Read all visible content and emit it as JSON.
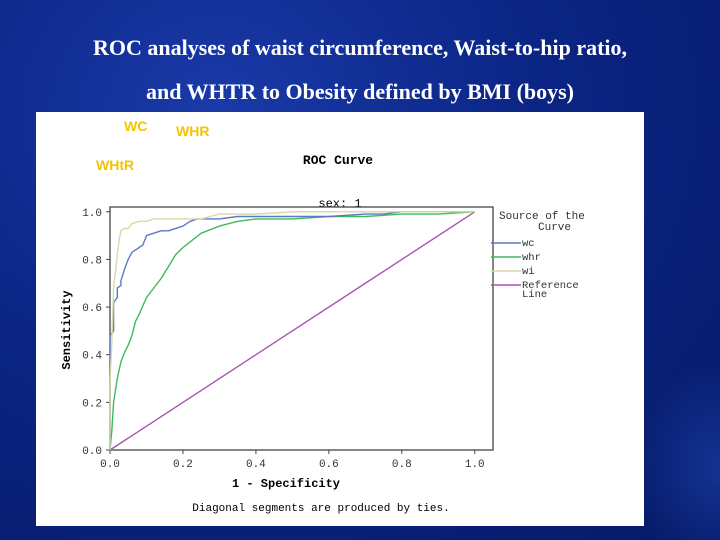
{
  "slide": {
    "title_line1": "ROC analyses of waist circumference, Waist-to-hip ratio,",
    "title_line2": "and WHTR to Obesity defined by BMI  (boys)"
  },
  "annotations": {
    "wc": "WC",
    "whr": "WHR",
    "whtr": "WHtR",
    "color": "#f5c400"
  },
  "chart_data": {
    "type": "line",
    "title": "ROC Curve",
    "subtitle": "sex:  1",
    "xlabel": "1 - Specificity",
    "ylabel": "Sensitivity",
    "xlim": [
      0,
      1.05
    ],
    "ylim": [
      0,
      1.02
    ],
    "xticks": [
      "0.0",
      "0.2",
      "0.4",
      "0.6",
      "0.8",
      "1.0"
    ],
    "yticks": [
      "0.0",
      "0.2",
      "0.4",
      "0.6",
      "0.8",
      "1.0"
    ],
    "legend_title": "Source of the Curve",
    "legend_position": "right",
    "footnote": "Diagonal segments are produced by ties.",
    "series": [
      {
        "name": "wc",
        "color": "#5a7bc4",
        "x": [
          0,
          0,
          0.01,
          0.01,
          0.02,
          0.02,
          0.03,
          0.03,
          0.04,
          0.05,
          0.06,
          0.07,
          0.08,
          0.09,
          0.1,
          0.12,
          0.14,
          0.16,
          0.18,
          0.2,
          0.22,
          0.24,
          0.26,
          0.3,
          0.35,
          0.4,
          0.5,
          0.6,
          0.7,
          0.75,
          0.8,
          0.9,
          1.0
        ],
        "y": [
          0,
          0.48,
          0.5,
          0.62,
          0.64,
          0.68,
          0.69,
          0.71,
          0.76,
          0.8,
          0.83,
          0.84,
          0.85,
          0.86,
          0.9,
          0.91,
          0.92,
          0.92,
          0.93,
          0.94,
          0.96,
          0.97,
          0.97,
          0.97,
          0.98,
          0.98,
          0.98,
          0.98,
          0.99,
          0.99,
          1.0,
          1.0,
          1.0
        ]
      },
      {
        "name": "whr",
        "color": "#3dbb5a",
        "x": [
          0,
          0.005,
          0.01,
          0.02,
          0.03,
          0.04,
          0.05,
          0.06,
          0.07,
          0.08,
          0.1,
          0.12,
          0.14,
          0.16,
          0.18,
          0.2,
          0.25,
          0.3,
          0.35,
          0.4,
          0.45,
          0.5,
          0.6,
          0.7,
          0.8,
          0.9,
          1.0
        ],
        "y": [
          0,
          0.08,
          0.2,
          0.3,
          0.37,
          0.41,
          0.44,
          0.48,
          0.54,
          0.57,
          0.64,
          0.68,
          0.72,
          0.77,
          0.82,
          0.85,
          0.91,
          0.94,
          0.96,
          0.97,
          0.97,
          0.97,
          0.98,
          0.98,
          0.99,
          0.99,
          1.0
        ]
      },
      {
        "name": "wi",
        "color": "#d8d8a8",
        "x": [
          0,
          0,
          0.005,
          0.01,
          0.015,
          0.02,
          0.025,
          0.03,
          0.04,
          0.05,
          0.06,
          0.08,
          0.1,
          0.12,
          0.15,
          0.2,
          0.25,
          0.3,
          0.4,
          0.5,
          0.7,
          1.0
        ],
        "y": [
          0,
          0.28,
          0.45,
          0.68,
          0.75,
          0.82,
          0.88,
          0.92,
          0.93,
          0.93,
          0.95,
          0.96,
          0.96,
          0.97,
          0.97,
          0.97,
          0.97,
          0.99,
          0.99,
          1.0,
          1.0,
          1.0
        ]
      },
      {
        "name": "Reference Line",
        "color": "#a855b0",
        "x": [
          0,
          1.0
        ],
        "y": [
          0,
          1.0
        ]
      }
    ]
  }
}
